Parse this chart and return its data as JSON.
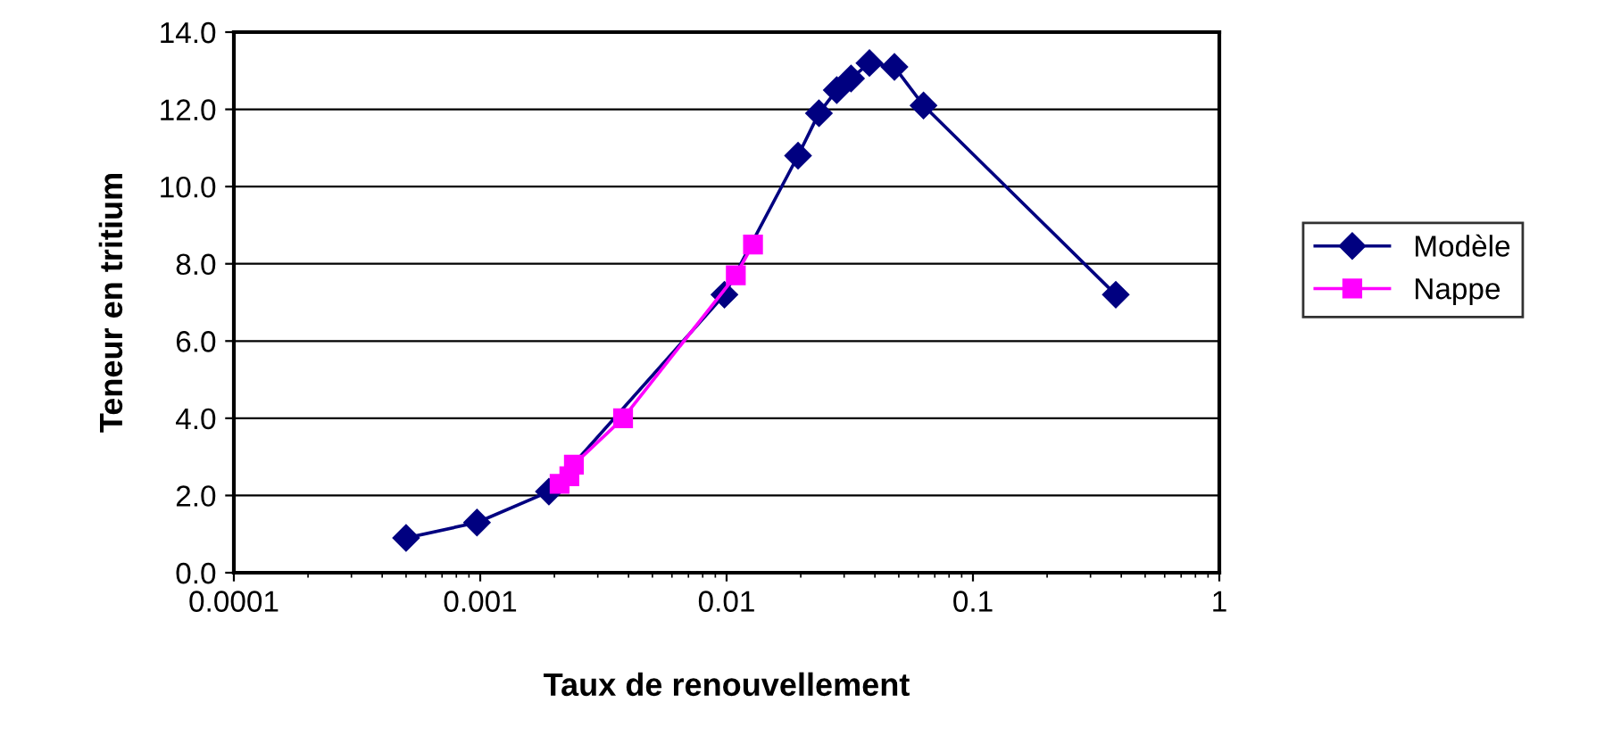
{
  "chart_data": {
    "type": "line",
    "xlabel": "Taux de renouvellement",
    "ylabel": "Teneur en tritium",
    "log": "x",
    "grid": "y",
    "legend": "right",
    "xlim": [
      0.0001,
      1
    ],
    "xticks": [
      {
        "value": 0.0001,
        "label": "0.0001"
      },
      {
        "value": 0.001,
        "label": "0.001"
      },
      {
        "value": 0.01,
        "label": "0.01"
      },
      {
        "value": 0.1,
        "label": "0.1"
      },
      {
        "value": 1,
        "label": "1"
      }
    ],
    "ylim": [
      0,
      14
    ],
    "yticks": [
      {
        "value": 0,
        "label": "0.0"
      },
      {
        "value": 2,
        "label": "2.0"
      },
      {
        "value": 4,
        "label": "4.0"
      },
      {
        "value": 6,
        "label": "6.0"
      },
      {
        "value": 8,
        "label": "8.0"
      },
      {
        "value": 10,
        "label": "10.0"
      },
      {
        "value": 12,
        "label": "12.0"
      },
      {
        "value": 14,
        "label": "14.0"
      }
    ],
    "series": [
      {
        "name": "Modèle",
        "color": "#000080",
        "marker": "diamond",
        "x": [
          0.0005,
          0.00097,
          0.0019,
          0.0098,
          0.0195,
          0.0237,
          0.028,
          0.032,
          0.038,
          0.048,
          0.063,
          0.38
        ],
        "values": [
          0.9,
          1.3,
          2.1,
          7.2,
          10.8,
          11.9,
          12.5,
          12.8,
          13.2,
          13.1,
          12.1,
          7.2
        ]
      },
      {
        "name": "Nappe",
        "color": "#ff00ff",
        "marker": "square",
        "x": [
          0.0021,
          0.0023,
          0.0024,
          0.0038,
          0.0109,
          0.0128
        ],
        "values": [
          2.3,
          2.5,
          2.8,
          4.0,
          7.7,
          8.5
        ]
      }
    ]
  }
}
